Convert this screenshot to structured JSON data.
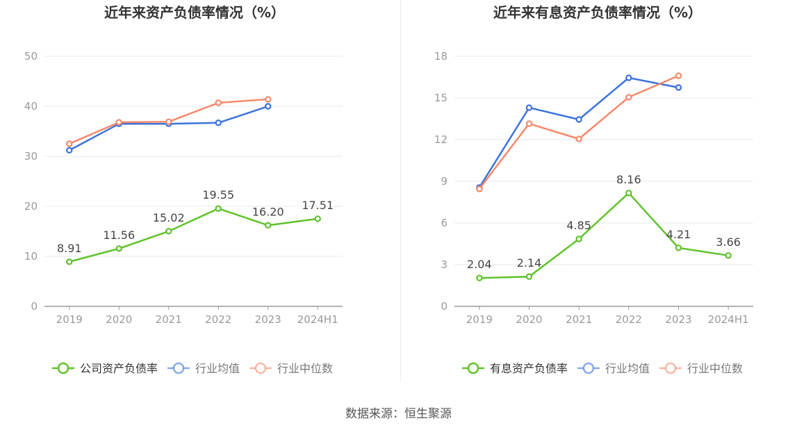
{
  "source": "数据来源：恒生聚源",
  "colors": {
    "company": "#5ec229",
    "average": "#3b73db",
    "median": "#f4896a",
    "grid": "#e6e9f2",
    "axis": "#999999",
    "tick": "#999999",
    "label": "#444444"
  },
  "chart_data": [
    {
      "type": "line",
      "title": "近年来资产负债率情况（%）",
      "categories": [
        "2019",
        "2020",
        "2021",
        "2022",
        "2023",
        "2024H1"
      ],
      "y_ticks": [
        "0",
        "10",
        "20",
        "30",
        "40",
        "50"
      ],
      "ylim": [
        0,
        50
      ],
      "grid": true,
      "legend_position": "bottom",
      "series": [
        {
          "name": "公司资产负债率",
          "color": "#5ec229",
          "values": [
            8.91,
            11.56,
            15.02,
            19.55,
            16.2,
            17.51
          ],
          "labels": [
            "8.91",
            "11.56",
            "15.02",
            "19.55",
            "16.20",
            "17.51"
          ]
        },
        {
          "name": "行业均值",
          "color": "#3b73db",
          "values": [
            31.2,
            36.5,
            36.5,
            36.7,
            40.0,
            null
          ]
        },
        {
          "name": "行业中位数",
          "color": "#f4896a",
          "values": [
            32.5,
            36.8,
            36.9,
            40.7,
            41.4,
            null
          ]
        }
      ]
    },
    {
      "type": "line",
      "title": "近年来有息资产负债率情况（%）",
      "categories": [
        "2019",
        "2020",
        "2021",
        "2022",
        "2023",
        "2024H1"
      ],
      "y_ticks": [
        "0",
        "3",
        "6",
        "9",
        "12",
        "15",
        "18"
      ],
      "ylim": [
        0,
        18
      ],
      "grid": true,
      "legend_position": "bottom",
      "series": [
        {
          "name": "有息资产负债率",
          "color": "#5ec229",
          "values": [
            2.04,
            2.14,
            4.85,
            8.16,
            4.21,
            3.66
          ],
          "labels": [
            "2.04",
            "2.14",
            "4.85",
            "8.16",
            "4.21",
            "3.66"
          ]
        },
        {
          "name": "行业均值",
          "color": "#3b73db",
          "values": [
            8.55,
            14.3,
            13.45,
            16.45,
            15.75,
            null
          ]
        },
        {
          "name": "行业中位数",
          "color": "#f4896a",
          "values": [
            8.45,
            13.15,
            12.05,
            15.05,
            16.6,
            null
          ]
        }
      ]
    }
  ]
}
